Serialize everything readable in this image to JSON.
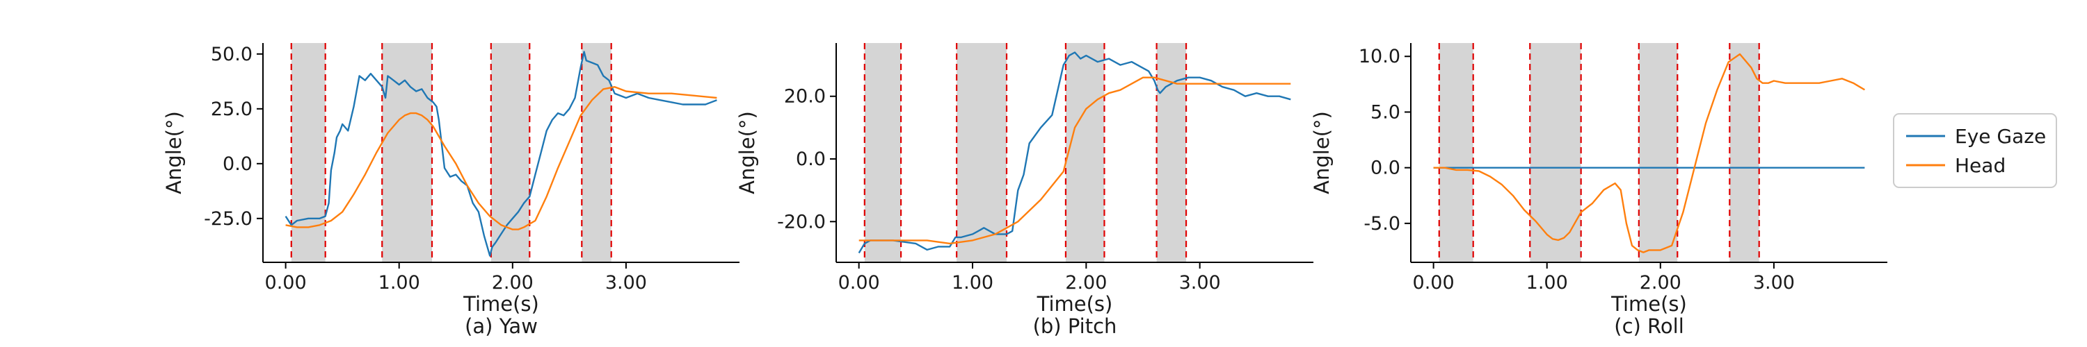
{
  "legend": {
    "location": "right",
    "entries": [
      "Eye Gaze",
      "Head"
    ]
  },
  "chart_data": [
    {
      "type": "line",
      "caption": "(a) Yaw",
      "xlabel": "Time(s)",
      "ylabel": "Angle(°)",
      "xlim": [
        -0.2,
        4.0
      ],
      "ylim": [
        -45,
        55
      ],
      "xticks": [
        0,
        1,
        2,
        3
      ],
      "xtick_labels": [
        "0.00",
        "1.00",
        "2.00",
        "3.00"
      ],
      "yticks": [
        -25,
        0,
        25,
        50
      ],
      "ytick_labels": [
        "-25.0",
        "0.0",
        "25.0",
        "50.0"
      ],
      "shaded_intervals": [
        [
          0.05,
          0.35
        ],
        [
          0.85,
          1.29
        ],
        [
          1.81,
          2.15
        ],
        [
          2.61,
          2.87
        ]
      ],
      "colors": {
        "Eye Gaze": "#1f77b4",
        "Head": "#ff7f0e"
      },
      "series": [
        {
          "name": "Eye Gaze",
          "x": [
            0,
            0.05,
            0.1,
            0.2,
            0.3,
            0.35,
            0.38,
            0.4,
            0.43,
            0.45,
            0.48,
            0.5,
            0.55,
            0.6,
            0.65,
            0.7,
            0.75,
            0.8,
            0.85,
            0.88,
            0.9,
            0.95,
            1.0,
            1.05,
            1.1,
            1.15,
            1.2,
            1.25,
            1.3,
            1.33,
            1.35,
            1.4,
            1.45,
            1.5,
            1.55,
            1.6,
            1.65,
            1.7,
            1.75,
            1.8,
            1.82,
            1.85,
            1.9,
            1.95,
            2.0,
            2.05,
            2.1,
            2.15,
            2.2,
            2.25,
            2.3,
            2.35,
            2.4,
            2.45,
            2.5,
            2.55,
            2.6,
            2.63,
            2.65,
            2.7,
            2.75,
            2.8,
            2.85,
            2.9,
            3.0,
            3.1,
            3.2,
            3.3,
            3.4,
            3.5,
            3.6,
            3.7,
            3.8
          ],
          "y": [
            -24,
            -28,
            -26,
            -25,
            -25,
            -24,
            -18,
            -3,
            5,
            12,
            15,
            18,
            15,
            26,
            40,
            38,
            41,
            38,
            35,
            30,
            40,
            38,
            36,
            38,
            35,
            33,
            34,
            30,
            28,
            26,
            20,
            -2,
            -6,
            -5,
            -8,
            -10,
            -18,
            -22,
            -33,
            -42,
            -38,
            -36,
            -32,
            -28,
            -25,
            -22,
            -18,
            -15,
            -5,
            5,
            15,
            20,
            23,
            22,
            25,
            30,
            44,
            51,
            47,
            46,
            45,
            40,
            38,
            32,
            30,
            32,
            30,
            29,
            28,
            27,
            27,
            27,
            29
          ]
        },
        {
          "name": "Head",
          "x": [
            0,
            0.1,
            0.2,
            0.3,
            0.35,
            0.4,
            0.5,
            0.6,
            0.7,
            0.8,
            0.9,
            1.0,
            1.05,
            1.1,
            1.15,
            1.2,
            1.25,
            1.3,
            1.4,
            1.5,
            1.6,
            1.7,
            1.8,
            1.9,
            2.0,
            2.05,
            2.1,
            2.2,
            2.3,
            2.4,
            2.5,
            2.6,
            2.7,
            2.8,
            2.9,
            3.0,
            3.2,
            3.4,
            3.6,
            3.8
          ],
          "y": [
            -28,
            -29,
            -29,
            -28,
            -27,
            -26,
            -22,
            -14,
            -5,
            5,
            14,
            20,
            22,
            23,
            23,
            22,
            20,
            17,
            8,
            0,
            -10,
            -18,
            -24,
            -28,
            -30,
            -30,
            -29,
            -26,
            -15,
            -2,
            10,
            22,
            29,
            34,
            35,
            33,
            32,
            32,
            31,
            30
          ]
        }
      ]
    },
    {
      "type": "line",
      "caption": "(b) Pitch",
      "xlabel": "Time(s)",
      "ylabel": "Angle(°)",
      "xlim": [
        -0.2,
        4.0
      ],
      "ylim": [
        -33,
        37
      ],
      "xticks": [
        0,
        1,
        2,
        3
      ],
      "xtick_labels": [
        "0.00",
        "1.00",
        "2.00",
        "3.00"
      ],
      "yticks": [
        -20,
        0,
        20
      ],
      "ytick_labels": [
        "-20.0",
        "0.0",
        "20.0"
      ],
      "shaded_intervals": [
        [
          0.05,
          0.37
        ],
        [
          0.86,
          1.3
        ],
        [
          1.82,
          2.16
        ],
        [
          2.62,
          2.88
        ]
      ],
      "colors": {
        "Eye Gaze": "#1f77b4",
        "Head": "#ff7f0e"
      },
      "series": [
        {
          "name": "Eye Gaze",
          "x": [
            0,
            0.05,
            0.1,
            0.3,
            0.5,
            0.6,
            0.7,
            0.8,
            0.85,
            0.9,
            1.0,
            1.05,
            1.1,
            1.2,
            1.3,
            1.35,
            1.4,
            1.45,
            1.5,
            1.6,
            1.7,
            1.75,
            1.8,
            1.85,
            1.9,
            1.95,
            2.0,
            2.1,
            2.2,
            2.3,
            2.4,
            2.5,
            2.55,
            2.6,
            2.63,
            2.65,
            2.7,
            2.8,
            2.9,
            3.0,
            3.1,
            3.2,
            3.3,
            3.4,
            3.5,
            3.6,
            3.7,
            3.8
          ],
          "y": [
            -30,
            -27,
            -26,
            -26,
            -27,
            -29,
            -28,
            -28,
            -25,
            -25,
            -24,
            -23,
            -22,
            -24,
            -24,
            -23,
            -10,
            -5,
            5,
            10,
            14,
            22,
            30,
            33,
            34,
            32,
            33,
            31,
            32,
            30,
            31,
            29,
            28,
            25,
            22,
            21,
            23,
            25,
            26,
            26,
            25,
            23,
            22,
            20,
            21,
            20,
            20,
            19
          ]
        },
        {
          "name": "Head",
          "x": [
            0,
            0.2,
            0.4,
            0.6,
            0.8,
            1.0,
            1.2,
            1.4,
            1.6,
            1.8,
            1.9,
            2.0,
            2.1,
            2.2,
            2.3,
            2.4,
            2.5,
            2.6,
            2.7,
            2.8,
            3.0,
            3.2,
            3.4,
            3.6,
            3.8
          ],
          "y": [
            -26,
            -26,
            -26,
            -26,
            -27,
            -26,
            -24,
            -20,
            -13,
            -4,
            10,
            16,
            19,
            21,
            22,
            24,
            26,
            26,
            25,
            24,
            24,
            24,
            24,
            24,
            24
          ]
        }
      ]
    },
    {
      "type": "line",
      "caption": "(c) Roll",
      "xlabel": "Time(s)",
      "ylabel": "Angle(°)",
      "xlim": [
        -0.2,
        4.0
      ],
      "ylim": [
        -8.5,
        11.2
      ],
      "xticks": [
        0,
        1,
        2,
        3
      ],
      "xtick_labels": [
        "0.00",
        "1.00",
        "2.00",
        "3.00"
      ],
      "yticks": [
        -5,
        0,
        5,
        10
      ],
      "ytick_labels": [
        "-5.0",
        "0.0",
        "5.0",
        "10.0"
      ],
      "shaded_intervals": [
        [
          0.05,
          0.35
        ],
        [
          0.85,
          1.3
        ],
        [
          1.81,
          2.15
        ],
        [
          2.61,
          2.87
        ]
      ],
      "colors": {
        "Eye Gaze": "#1f77b4",
        "Head": "#ff7f0e"
      },
      "series": [
        {
          "name": "Eye Gaze",
          "x": [
            0,
            3.8
          ],
          "y": [
            0,
            0
          ]
        },
        {
          "name": "Head",
          "x": [
            0,
            0.1,
            0.2,
            0.3,
            0.4,
            0.5,
            0.6,
            0.7,
            0.8,
            0.9,
            1.0,
            1.05,
            1.1,
            1.15,
            1.2,
            1.3,
            1.4,
            1.5,
            1.6,
            1.65,
            1.7,
            1.75,
            1.8,
            1.85,
            1.9,
            2.0,
            2.1,
            2.2,
            2.3,
            2.4,
            2.5,
            2.6,
            2.7,
            2.8,
            2.85,
            2.9,
            2.95,
            3.0,
            3.1,
            3.2,
            3.3,
            3.4,
            3.5,
            3.6,
            3.7,
            3.8
          ],
          "y": [
            0,
            0,
            -0.2,
            -0.2,
            -0.3,
            -0.8,
            -1.5,
            -2.5,
            -3.8,
            -4.8,
            -6.0,
            -6.4,
            -6.5,
            -6.3,
            -5.8,
            -4.0,
            -3.2,
            -2.0,
            -1.4,
            -2.0,
            -5.0,
            -7.0,
            -7.4,
            -7.6,
            -7.4,
            -7.4,
            -7.0,
            -4.0,
            0,
            4.0,
            7.0,
            9.5,
            10.2,
            9.0,
            8.0,
            7.6,
            7.6,
            7.8,
            7.6,
            7.6,
            7.6,
            7.6,
            7.8,
            8.0,
            7.6,
            7.0
          ]
        }
      ]
    }
  ]
}
